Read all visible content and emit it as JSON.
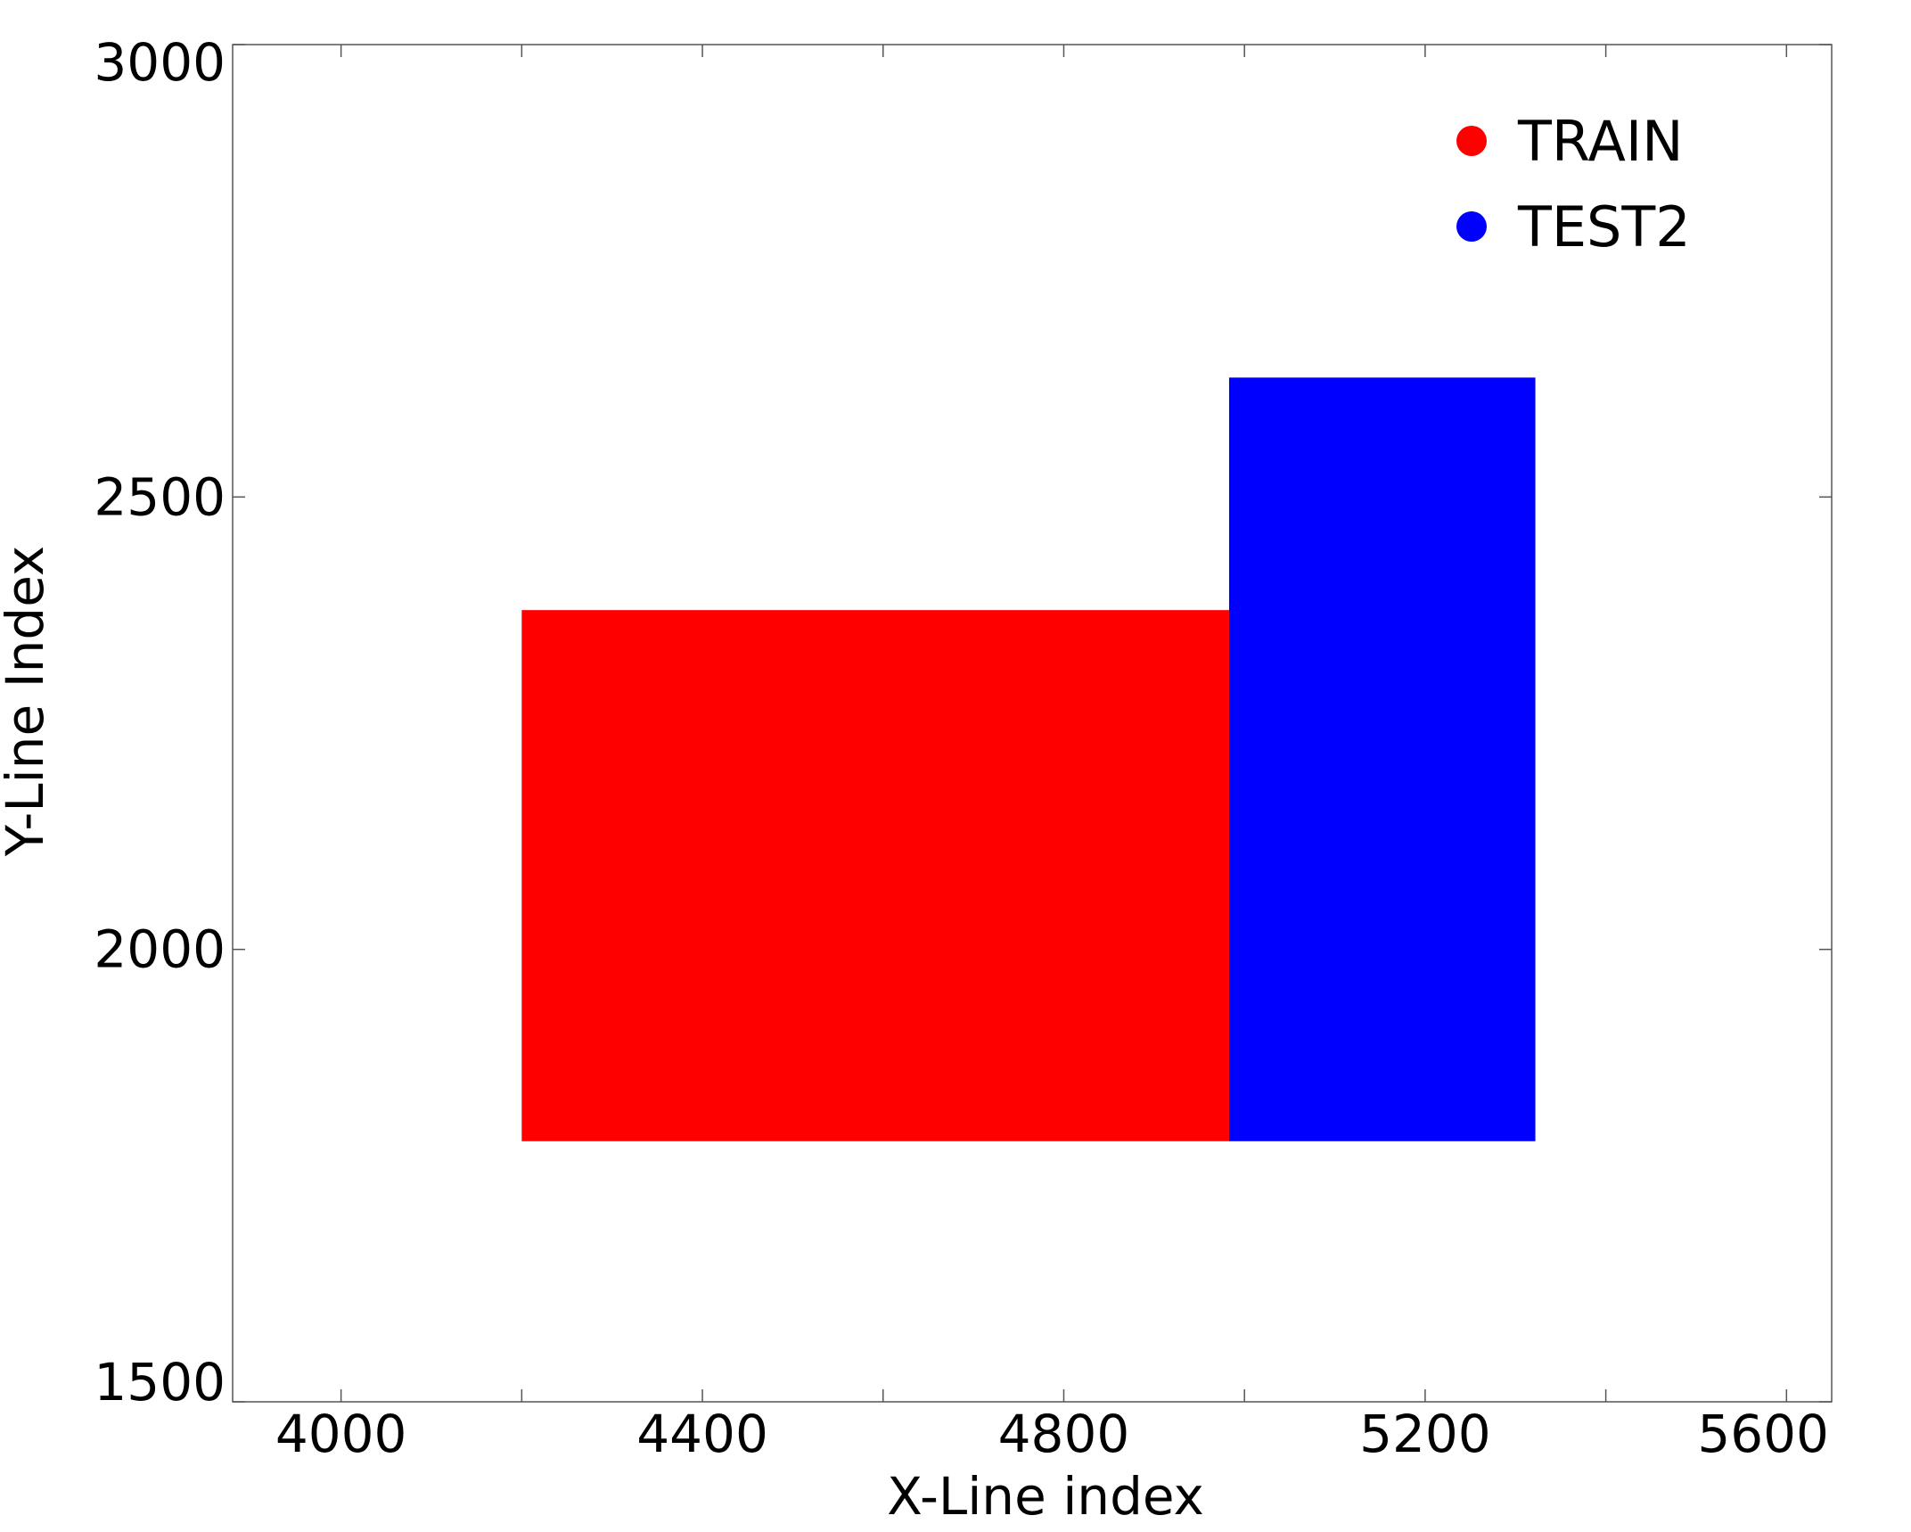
{
  "chart_data": {
    "type": "area",
    "title": "",
    "xlabel": "X-Line index",
    "ylabel": "Y-Line Index",
    "xlim": [
      3880,
      5650
    ],
    "ylim": [
      1500,
      3000
    ],
    "x_ticks": [
      4000,
      4400,
      4800,
      5200,
      5600
    ],
    "x_minor_ticks": [
      4000,
      4200,
      4400,
      4600,
      4800,
      5000,
      5200,
      5400,
      5600
    ],
    "y_ticks": [
      1500,
      2000,
      2500,
      3000
    ],
    "grid": false,
    "legend_position": "top-right",
    "series": [
      {
        "name": "TRAIN",
        "color": "#ff0000",
        "x_range": [
          4200,
          4983
        ],
        "y_range": [
          1788,
          2375
        ]
      },
      {
        "name": "TEST2",
        "color": "#0000ff",
        "x_range": [
          4983,
          5322
        ],
        "y_range": [
          1788,
          2632
        ]
      }
    ]
  }
}
